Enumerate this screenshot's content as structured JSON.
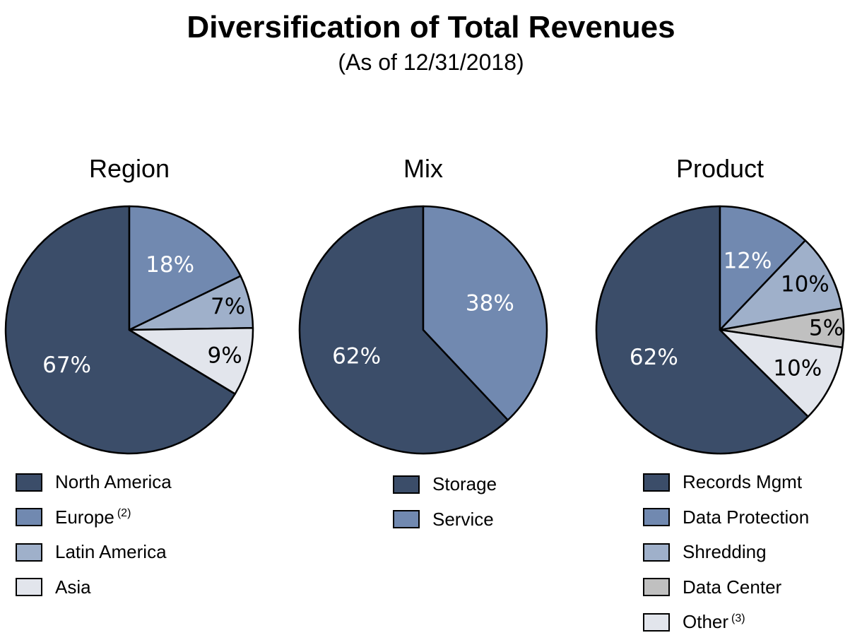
{
  "title": "Diversification of Total Revenues",
  "subtitle": "(As of 12/31/2018)",
  "colors": {
    "dark_navy": "#3b4d69",
    "steel_blue": "#7189b0",
    "light_steel": "#9fb0ca",
    "pale_gray_blue": "#e2e5ec",
    "gray": "#c0c0c0"
  },
  "chart_data": [
    {
      "type": "pie",
      "title": "Region",
      "series": [
        {
          "name": "North America",
          "value": 67,
          "label": "67%",
          "color": "#3b4d69",
          "label_color": "#ffffff"
        },
        {
          "name": "Europe",
          "note": "(2)",
          "value": 18,
          "label": "18%",
          "color": "#7189b0",
          "label_color": "#ffffff"
        },
        {
          "name": "Latin America",
          "value": 7,
          "label": "7%",
          "color": "#9fb0ca",
          "label_color": "#000000"
        },
        {
          "name": "Asia",
          "value": 9,
          "label": "9%",
          "color": "#e2e5ec",
          "label_color": "#000000"
        }
      ]
    },
    {
      "type": "pie",
      "title": "Mix",
      "series": [
        {
          "name": "Storage",
          "value": 62,
          "label": "62%",
          "color": "#3b4d69",
          "label_color": "#ffffff"
        },
        {
          "name": "Service",
          "value": 38,
          "label": "38%",
          "color": "#7189b0",
          "label_color": "#ffffff"
        }
      ]
    },
    {
      "type": "pie",
      "title": "Product",
      "series": [
        {
          "name": "Records Mgmt",
          "value": 62,
          "label": "62%",
          "color": "#3b4d69",
          "label_color": "#ffffff"
        },
        {
          "name": "Data Protection",
          "value": 12,
          "label": "12%",
          "color": "#7189b0",
          "label_color": "#ffffff"
        },
        {
          "name": "Shredding",
          "value": 10,
          "label": "10%",
          "color": "#9fb0ca",
          "label_color": "#000000"
        },
        {
          "name": "Data Center",
          "value": 5,
          "label": "5%",
          "color": "#c0c0c0",
          "label_color": "#000000"
        },
        {
          "name": "Other",
          "note": "(3)",
          "value": 10,
          "label": "10%",
          "color": "#e2e5ec",
          "label_color": "#000000"
        }
      ]
    }
  ]
}
